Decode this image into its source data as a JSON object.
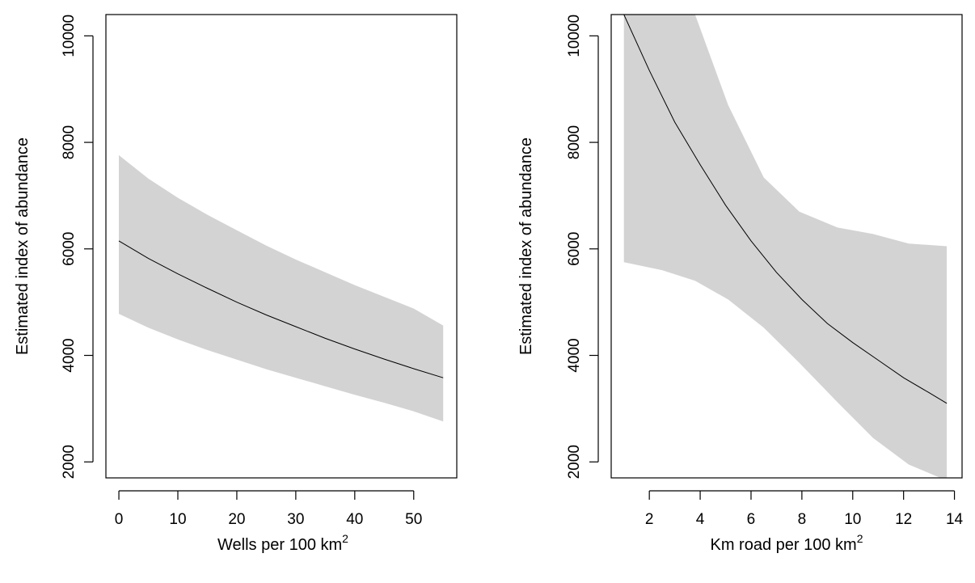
{
  "chart_data": [
    {
      "type": "line",
      "title": "",
      "xlabel": "Wells per 100 km",
      "xlabel_superscript": "2",
      "ylabel": "Estimated index of abundance",
      "xlim": [
        -2.2,
        57.3
      ],
      "ylim": [
        1700,
        10400
      ],
      "xticks": [
        0,
        10,
        20,
        30,
        40,
        50
      ],
      "yticks": [
        2000,
        4000,
        6000,
        8000,
        10000
      ],
      "grid": false,
      "series": [
        {
          "role": "estimate",
          "color": "#000000",
          "x": [
            0,
            5,
            10,
            15,
            20,
            25,
            30,
            35,
            40,
            45,
            50,
            55
          ],
          "y": [
            6150,
            5820,
            5530,
            5260,
            5000,
            4760,
            4540,
            4320,
            4120,
            3930,
            3750,
            3580
          ]
        },
        {
          "role": "confidence-band",
          "color": "#d3d3d3",
          "x": [
            0,
            5,
            10,
            15,
            20,
            25,
            30,
            35,
            40,
            45,
            50,
            55
          ],
          "lower": [
            4780,
            4520,
            4300,
            4100,
            3920,
            3740,
            3580,
            3420,
            3260,
            3110,
            2950,
            2760
          ],
          "upper": [
            7760,
            7320,
            6960,
            6640,
            6350,
            6060,
            5800,
            5560,
            5320,
            5100,
            4880,
            4560
          ]
        }
      ]
    },
    {
      "type": "line",
      "title": "",
      "xlabel": "Km road per 100 km",
      "xlabel_superscript": "2",
      "ylabel": "Estimated index of abundance",
      "xlim": [
        0.5,
        14.3
      ],
      "ylim": [
        1700,
        10400
      ],
      "xticks": [
        2,
        4,
        6,
        8,
        10,
        12,
        14
      ],
      "yticks": [
        2000,
        4000,
        6000,
        8000,
        10000
      ],
      "grid": false,
      "series": [
        {
          "role": "estimate",
          "color": "#000000",
          "x": [
            1,
            2,
            3,
            4,
            5,
            6,
            7,
            8,
            9,
            10,
            11,
            12,
            13,
            13.7
          ],
          "y": [
            10400,
            9350,
            8380,
            7580,
            6820,
            6150,
            5560,
            5050,
            4600,
            4240,
            3910,
            3580,
            3300,
            3100
          ]
        },
        {
          "role": "confidence-band",
          "color": "#d3d3d3",
          "x": [
            1,
            2.5,
            3.8,
            5.1,
            6.5,
            7.9,
            9.4,
            10.8,
            12.2,
            13.7
          ],
          "lower": [
            5750,
            5600,
            5400,
            5050,
            4520,
            3860,
            3120,
            2450,
            1950,
            1650
          ],
          "upper": [
            10400,
            10400,
            10400,
            8700,
            7340,
            6700,
            6400,
            6280,
            6100,
            6050
          ]
        }
      ]
    }
  ]
}
